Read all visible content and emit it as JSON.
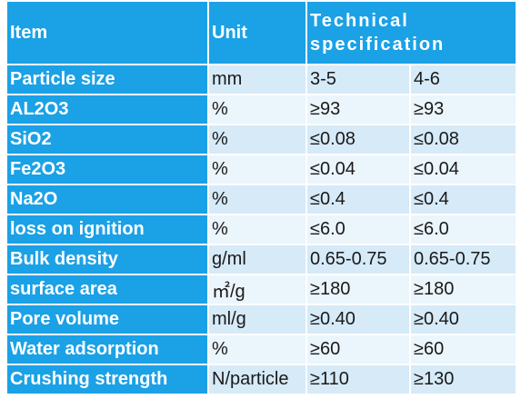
{
  "table": {
    "header": [
      "Item",
      "Unit",
      "Technical specification"
    ],
    "rows": [
      [
        "Particle size",
        "mm",
        "3-5",
        "4-6"
      ],
      [
        "AL2O3",
        "%",
        "≥93",
        "≥93"
      ],
      [
        "SiO2",
        "%",
        "≤0.08",
        "≤0.08"
      ],
      [
        "Fe2O3",
        "%",
        "≤0.04",
        "≤0.04"
      ],
      [
        "Na2O",
        "%",
        "≤0.4",
        "≤0.4"
      ],
      [
        "loss on ignition",
        "%",
        "≤6.0",
        "≤6.0"
      ],
      [
        "Bulk density",
        "g/ml",
        "0.65-0.75",
        "0.65-0.75"
      ],
      [
        "surface area",
        "㎡/g",
        "≥180",
        "≥180"
      ],
      [
        "Pore volume",
        "ml/g",
        "≥0.40",
        "≥0.40"
      ],
      [
        "Water adsorption",
        "%",
        "≥60",
        "≥60"
      ],
      [
        "Crushing strength",
        "N/particle",
        "≥110",
        "≥130"
      ]
    ]
  }
}
